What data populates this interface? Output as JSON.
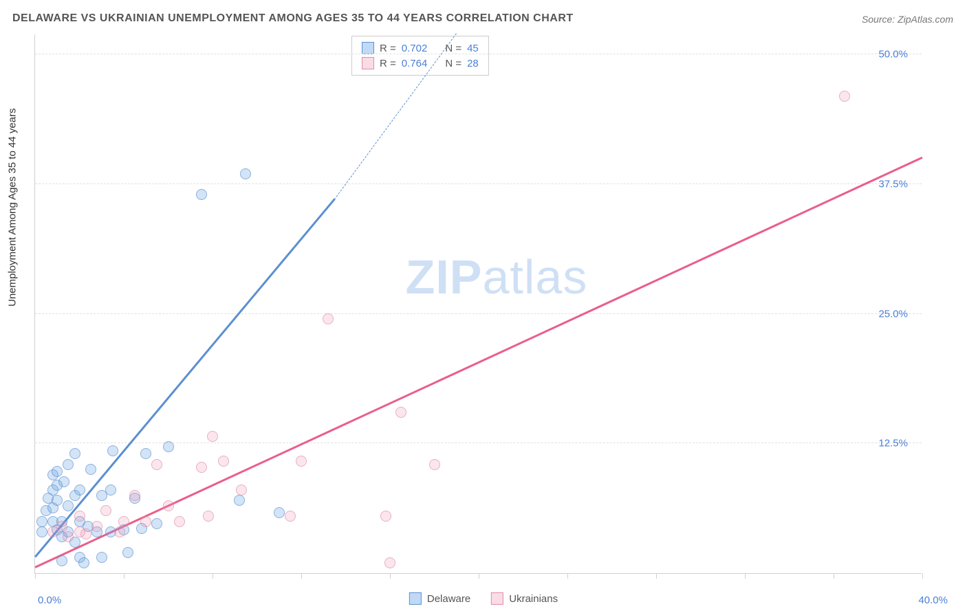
{
  "title": "DELAWARE VS UKRAINIAN UNEMPLOYMENT AMONG AGES 35 TO 44 YEARS CORRELATION CHART",
  "source": "Source: ZipAtlas.com",
  "ylabel": "Unemployment Among Ages 35 to 44 years",
  "watermark_zip": "ZIP",
  "watermark_atlas": "atlas",
  "chart": {
    "type": "scatter",
    "xlim": [
      0,
      40
    ],
    "ylim": [
      0,
      52
    ],
    "x_ticks_label_left": "0.0%",
    "x_ticks_label_right": "40.0%",
    "y_ticks": [
      {
        "v": 12.5,
        "label": "12.5%"
      },
      {
        "v": 25.0,
        "label": "25.0%"
      },
      {
        "v": 37.5,
        "label": "37.5%"
      },
      {
        "v": 50.0,
        "label": "50.0%"
      }
    ],
    "x_minor_ticks": [
      0,
      4,
      8,
      12,
      16,
      20,
      24,
      28,
      32,
      36,
      40
    ],
    "background_color": "#ffffff",
    "grid_color": "#e0e0e0",
    "axis_color": "#d0d0d0",
    "tick_label_color": "#4a7fd8",
    "series": [
      {
        "name": "Delaware",
        "color": "#5b8fd0",
        "fill": "rgba(100,160,230,0.4)",
        "R": "0.702",
        "N": "45",
        "trend": {
          "x1": 0,
          "y1": 1.5,
          "x2": 13.5,
          "y2": 36.0,
          "dashed_to_x": 19.0,
          "dashed_to_y": 52.0
        },
        "points": [
          [
            0.3,
            4.0
          ],
          [
            0.3,
            5.0
          ],
          [
            0.5,
            6.0
          ],
          [
            0.6,
            7.2
          ],
          [
            0.8,
            5.0
          ],
          [
            0.8,
            6.3
          ],
          [
            0.8,
            8.0
          ],
          [
            0.8,
            9.5
          ],
          [
            1.0,
            4.2
          ],
          [
            1.0,
            7.0
          ],
          [
            1.0,
            8.5
          ],
          [
            1.0,
            9.8
          ],
          [
            1.2,
            1.2
          ],
          [
            1.2,
            3.5
          ],
          [
            1.2,
            5.0
          ],
          [
            1.3,
            8.8
          ],
          [
            1.5,
            4.0
          ],
          [
            1.5,
            6.5
          ],
          [
            1.5,
            10.5
          ],
          [
            1.8,
            3.0
          ],
          [
            1.8,
            7.5
          ],
          [
            1.8,
            11.5
          ],
          [
            2.0,
            1.5
          ],
          [
            2.0,
            5.0
          ],
          [
            2.0,
            8.0
          ],
          [
            2.2,
            1.0
          ],
          [
            2.4,
            4.5
          ],
          [
            2.5,
            10.0
          ],
          [
            2.8,
            4.0
          ],
          [
            3.0,
            1.5
          ],
          [
            3.0,
            7.5
          ],
          [
            3.4,
            4.0
          ],
          [
            3.4,
            8.0
          ],
          [
            3.5,
            11.8
          ],
          [
            4.0,
            4.2
          ],
          [
            4.2,
            2.0
          ],
          [
            4.5,
            7.2
          ],
          [
            4.8,
            4.3
          ],
          [
            5.0,
            11.5
          ],
          [
            5.5,
            4.8
          ],
          [
            6.0,
            12.2
          ],
          [
            7.5,
            36.5
          ],
          [
            9.2,
            7.0
          ],
          [
            9.5,
            38.5
          ],
          [
            11.0,
            5.8
          ]
        ]
      },
      {
        "name": "Ukrainians",
        "color": "#ea5e8a",
        "fill": "rgba(240,140,170,0.3)",
        "R": "0.764",
        "N": "28",
        "trend": {
          "x1": 0,
          "y1": 0.5,
          "x2": 40,
          "y2": 40.0
        },
        "points": [
          [
            0.8,
            4.0
          ],
          [
            1.2,
            4.5
          ],
          [
            1.5,
            3.5
          ],
          [
            2.0,
            4.0
          ],
          [
            2.0,
            5.5
          ],
          [
            2.3,
            3.8
          ],
          [
            2.8,
            4.5
          ],
          [
            3.2,
            6.0
          ],
          [
            3.8,
            4.0
          ],
          [
            4.0,
            5.0
          ],
          [
            4.5,
            7.5
          ],
          [
            5.0,
            5.0
          ],
          [
            5.5,
            10.5
          ],
          [
            6.0,
            6.5
          ],
          [
            6.5,
            5.0
          ],
          [
            7.5,
            10.2
          ],
          [
            7.8,
            5.5
          ],
          [
            8.0,
            13.2
          ],
          [
            8.5,
            10.8
          ],
          [
            9.3,
            8.0
          ],
          [
            11.5,
            5.5
          ],
          [
            12.0,
            10.8
          ],
          [
            13.2,
            24.5
          ],
          [
            16.0,
            1.0
          ],
          [
            15.8,
            5.5
          ],
          [
            16.5,
            15.5
          ],
          [
            18.0,
            10.5
          ],
          [
            36.5,
            46.0
          ]
        ]
      }
    ],
    "legend": {
      "R_label": "R =",
      "N_label": "N ="
    },
    "bottom_legend": {
      "blue": "Delaware",
      "pink": "Ukrainians"
    }
  }
}
